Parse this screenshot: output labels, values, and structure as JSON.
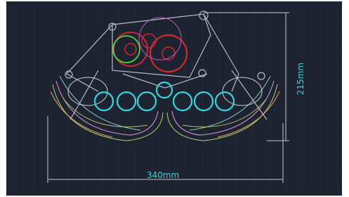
{
  "dimensions": {
    "height": "215mm",
    "width": "340mm"
  }
}
